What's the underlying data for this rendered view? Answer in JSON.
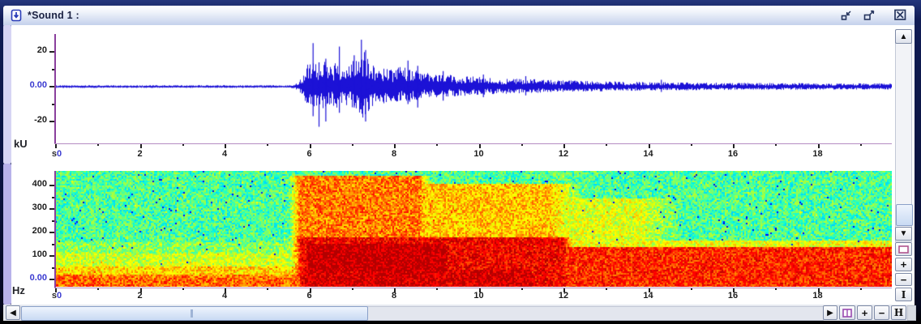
{
  "window": {
    "title": "*Sound 1 :",
    "icon": "document-play-icon",
    "buttons": {
      "minimize": "minimize",
      "restore": "restore",
      "close": "close"
    }
  },
  "colors": {
    "waveform": "#1c12d6",
    "axis": "#8a3f9d",
    "blue_zero_label": "#3a3ad0",
    "titlebar_text": "#1a2142"
  },
  "scrollbars": {
    "vertical": {
      "up": "▲",
      "down": "▼",
      "page_icon": "view-page-icon",
      "zoom_in": "+",
      "zoom_out": "−",
      "fit": "I"
    },
    "horizontal": {
      "left": "◀",
      "right": "▶",
      "layout_icon": "view-layout-icon",
      "zoom_in": "+",
      "zoom_out": "−",
      "fit": "H"
    }
  },
  "chart_data": [
    {
      "type": "line",
      "name": "waveform",
      "ylabel": "kU",
      "xunit": "s",
      "xlim": [
        0,
        19.75
      ],
      "ylim": [
        -30,
        30
      ],
      "x_prefix": "s",
      "x_major_ticks": [
        0,
        2,
        4,
        6,
        8,
        10,
        12,
        14,
        16,
        18
      ],
      "x_minor_ticks": [
        1,
        3,
        5,
        7,
        9,
        11,
        13,
        15,
        17,
        19
      ],
      "y_ticks": [
        {
          "v": 20,
          "label": "20"
        },
        {
          "v": 0,
          "label": "0.00"
        },
        {
          "v": -20,
          "label": "-20"
        }
      ],
      "y_minor_ticks": [
        10,
        -10
      ],
      "color": "#1c12d6",
      "envelope": [
        [
          0,
          0.8
        ],
        [
          5.55,
          0.85
        ],
        [
          5.75,
          2.5
        ],
        [
          5.95,
          14
        ],
        [
          6.05,
          20
        ],
        [
          6.2,
          14
        ],
        [
          6.35,
          15
        ],
        [
          6.5,
          12
        ],
        [
          6.65,
          17
        ],
        [
          6.8,
          12
        ],
        [
          7.0,
          14
        ],
        [
          7.15,
          20
        ],
        [
          7.3,
          22
        ],
        [
          7.45,
          14
        ],
        [
          7.6,
          10
        ],
        [
          7.75,
          12
        ],
        [
          7.95,
          10
        ],
        [
          8.2,
          12
        ],
        [
          8.45,
          10
        ],
        [
          8.7,
          8
        ],
        [
          9.0,
          7.5
        ],
        [
          9.4,
          6.5
        ],
        [
          9.8,
          6
        ],
        [
          10.3,
          5.2
        ],
        [
          10.8,
          4.6
        ],
        [
          11.4,
          4.2
        ],
        [
          12.0,
          3.6
        ],
        [
          12.8,
          3.2
        ],
        [
          13.6,
          2.8
        ],
        [
          14.4,
          2.6
        ],
        [
          15.2,
          2.4
        ],
        [
          16.0,
          2.2
        ],
        [
          17.0,
          2.1
        ],
        [
          18.0,
          2.0
        ],
        [
          19.75,
          1.9
        ]
      ],
      "spikes": [
        {
          "t": 6.08,
          "up": 25,
          "down": 17
        },
        {
          "t": 6.22,
          "up": 14,
          "down": 23
        },
        {
          "t": 6.38,
          "up": 16,
          "down": 20
        },
        {
          "t": 6.7,
          "up": 23,
          "down": 15
        },
        {
          "t": 7.05,
          "up": 18,
          "down": 12
        },
        {
          "t": 7.22,
          "up": 27,
          "down": 13
        },
        {
          "t": 7.32,
          "up": 21,
          "down": 20
        },
        {
          "t": 8.32,
          "up": 15,
          "down": 10
        },
        {
          "t": 8.55,
          "up": 12,
          "down": 12
        },
        {
          "t": 9.15,
          "up": 9,
          "down": 8
        },
        {
          "t": 10.1,
          "up": 7,
          "down": 6
        },
        {
          "t": 11.1,
          "up": 6,
          "down": 5
        },
        {
          "t": 14.3,
          "up": 4,
          "down": 3
        }
      ]
    },
    {
      "type": "heatmap",
      "name": "spectrogram",
      "ylabel": "Hz",
      "xunit": "s",
      "xlim": [
        0,
        19.75
      ],
      "ylim": [
        0,
        465
      ],
      "x_prefix": "s",
      "x_major_ticks": [
        0,
        2,
        4,
        6,
        8,
        10,
        12,
        14,
        16,
        18
      ],
      "x_minor_ticks": [
        1,
        3,
        5,
        7,
        9,
        11,
        13,
        15,
        17,
        19
      ],
      "y_ticks": [
        {
          "v": 400,
          "label": "400"
        },
        {
          "v": 300,
          "label": "300"
        },
        {
          "v": 200,
          "label": "200"
        },
        {
          "v": 100,
          "label": "100"
        },
        {
          "v": 0,
          "label": "0.00"
        }
      ],
      "y_minor_ticks": [
        350,
        250,
        150,
        50
      ],
      "colormap": "jet",
      "base_level": 0.45,
      "jitter": 0.11,
      "dark_dot_probability": 0.012,
      "regions": [
        {
          "t0": 0,
          "t1": 6.0,
          "f0": -40,
          "f1": 60,
          "v": 0.68,
          "fade": 0.2
        },
        {
          "t0": 0,
          "t1": 6.0,
          "f0": 60,
          "f1": 115,
          "v": 0.58,
          "fade": 0.2
        },
        {
          "t0": 0,
          "t1": 6.0,
          "f0": 115,
          "f1": 160,
          "v": 0.51,
          "fade": 0.2
        },
        {
          "t0": 0,
          "t1": 6.0,
          "f0": -40,
          "f1": 22,
          "v": 0.78,
          "fade": 0.1
        },
        {
          "t0": 5.75,
          "t1": 8.6,
          "f0": -40,
          "f1": 445,
          "v": 0.78,
          "fade": 0.25
        },
        {
          "t0": 8.4,
          "t1": 11.7,
          "f0": 60,
          "f1": 410,
          "v": 0.7,
          "fade": 0.8
        },
        {
          "t0": 11.3,
          "t1": 13.8,
          "f0": 110,
          "f1": 350,
          "v": 0.6,
          "fade": 1.0
        },
        {
          "t0": 5.8,
          "t1": 12.0,
          "f0": -40,
          "f1": 180,
          "v": 0.92,
          "fade": 0.3
        },
        {
          "t0": 5.95,
          "t1": 9.2,
          "f0": 35,
          "f1": 155,
          "v": 1.0,
          "fade": 0.2
        },
        {
          "t0": 5.9,
          "t1": 11.2,
          "f0": -40,
          "f1": 45,
          "v": 0.97,
          "fade": 0.3
        },
        {
          "t0": 11.8,
          "t1": 19.75,
          "f0": -40,
          "f1": 140,
          "v": 0.87,
          "fade": 0.5
        },
        {
          "t0": 11.8,
          "t1": 19.75,
          "f0": 140,
          "f1": 170,
          "v": 0.62,
          "fade": 0.5
        },
        {
          "t0": 0,
          "t1": 19.75,
          "f0": -40,
          "f1": 10,
          "v": 0.8,
          "fade": 0
        }
      ]
    }
  ]
}
